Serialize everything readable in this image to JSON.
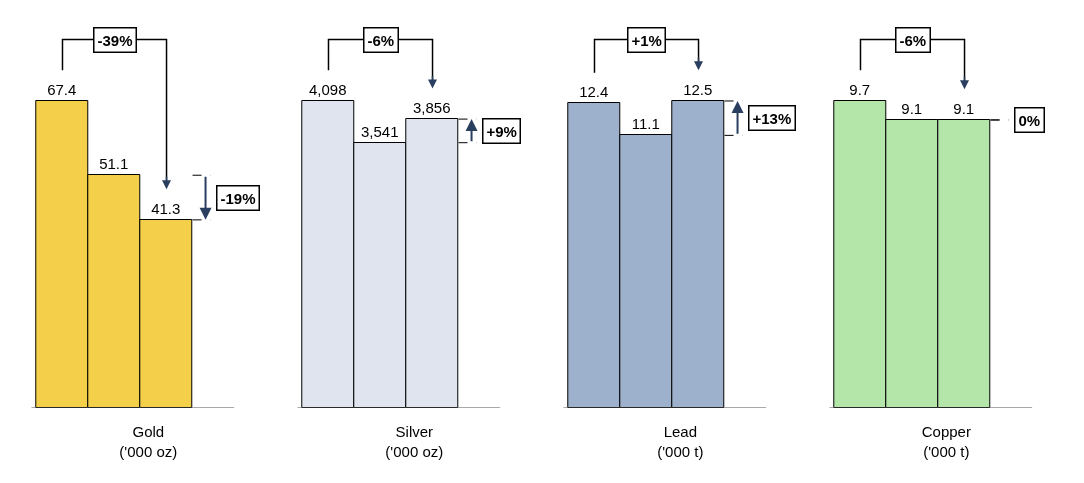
{
  "chart_data": [
    {
      "type": "bar",
      "xlabel": "Gold\n('000 oz)",
      "categories": [
        null,
        null,
        null
      ],
      "values": [
        67.4,
        51.1,
        41.3
      ],
      "value_labels": [
        "67.4",
        "51.1",
        "41.3"
      ],
      "color": "#f4d04a",
      "tick_labels": false,
      "annotations": [
        "-39%",
        "-19%"
      ]
    },
    {
      "type": "bar",
      "xlabel": "Silver\n('000 oz)",
      "categories": [
        null,
        null,
        null
      ],
      "values": [
        4098,
        3541,
        3856
      ],
      "value_labels": [
        "4,098",
        "3,541",
        "3,856"
      ],
      "color": "#dfe4ee",
      "tick_labels": false,
      "annotations": [
        "-6%",
        "+9%"
      ]
    },
    {
      "type": "bar",
      "xlabel": "Lead\n('000 t)",
      "categories": [
        null,
        null,
        null
      ],
      "values": [
        12.4,
        11.1,
        12.5
      ],
      "value_labels": [
        "12.4",
        "11.1",
        "12.5"
      ],
      "color": "#9db0cc",
      "tick_labels": false,
      "annotations": [
        "+1%",
        "+13%"
      ]
    },
    {
      "type": "bar",
      "xlabel": "Copper\n('000 t)",
      "categories": [
        null,
        null,
        null
      ],
      "values": [
        9.7,
        9.1,
        9.1
      ],
      "value_labels": [
        "9.7",
        "9.1",
        "9.1"
      ],
      "color": "#b3e6a8",
      "tick_labels": false,
      "annotations": [
        "-6%",
        "0%"
      ]
    }
  ]
}
